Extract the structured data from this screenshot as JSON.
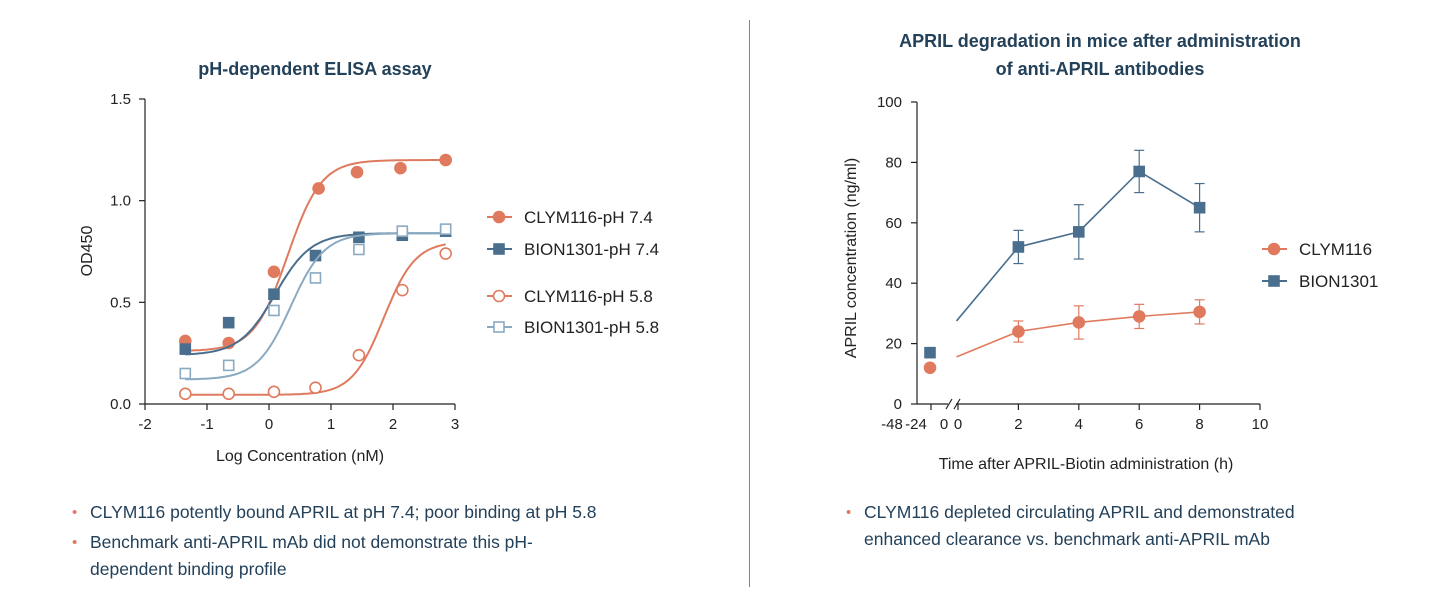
{
  "colors": {
    "orange": "#e07a5f",
    "blue": "#4a6f8e",
    "lightblue": "#8aaac2",
    "title": "#24415a",
    "divider": "#6a8aa5"
  },
  "chart_data": [
    {
      "type": "scatter",
      "title": "pH-dependent ELISA assay",
      "xlabel": "Log Concentration (nM)",
      "ylabel": "OD450",
      "xlim": [
        -2,
        3
      ],
      "ylim": [
        0,
        1.5
      ],
      "xticks": [
        "-2",
        "-1",
        "0",
        "1",
        "2",
        "3"
      ],
      "yticks": [
        "0.0",
        "0.5",
        "1.0",
        "1.5"
      ],
      "series": [
        {
          "name": "CLYM116-pH 7.4",
          "marker": "circle",
          "filled": true,
          "color": "#e07a5f",
          "x": [
            -1.35,
            -0.65,
            0.08,
            0.8,
            1.42,
            2.12,
            2.85
          ],
          "y": [
            0.31,
            0.3,
            0.65,
            1.06,
            1.14,
            1.16,
            1.2
          ],
          "curve": {
            "bottom": 0.26,
            "top": 1.2,
            "ec50": 0.3,
            "hill": 1.6
          }
        },
        {
          "name": "BION1301-pH 7.4",
          "marker": "square",
          "filled": true,
          "color": "#4a6f8e",
          "x": [
            -1.35,
            -0.65,
            0.08,
            0.75,
            1.45,
            2.15,
            2.85
          ],
          "y": [
            0.27,
            0.4,
            0.54,
            0.73,
            0.82,
            0.83,
            0.85
          ],
          "curve": {
            "bottom": 0.24,
            "top": 0.84,
            "ec50": 0.1,
            "hill": 1.5
          }
        },
        {
          "name": "CLYM116-pH 5.8",
          "marker": "circle",
          "filled": false,
          "color": "#e07a5f",
          "x": [
            -1.35,
            -0.65,
            0.08,
            0.75,
            1.45,
            2.15,
            2.85
          ],
          "y": [
            0.05,
            0.05,
            0.06,
            0.08,
            0.24,
            0.56,
            0.74
          ],
          "curve": {
            "bottom": 0.045,
            "top": 0.8,
            "ec50": 1.85,
            "hill": 1.7
          }
        },
        {
          "name": "BION1301-pH 5.8",
          "marker": "square",
          "filled": false,
          "color": "#8aaac2",
          "x": [
            -1.35,
            -0.65,
            0.08,
            0.75,
            1.45,
            2.15,
            2.85
          ],
          "y": [
            0.15,
            0.19,
            0.46,
            0.62,
            0.76,
            0.85,
            0.86
          ],
          "curve": {
            "bottom": 0.12,
            "top": 0.84,
            "ec50": 0.35,
            "hill": 1.6
          }
        }
      ],
      "legend_groups": [
        [
          0,
          1
        ],
        [
          2,
          3
        ]
      ],
      "legend": "right"
    },
    {
      "type": "line",
      "title": "APRIL degradation in mice after administration\nof anti-APRIL antibodies",
      "xlabel": "Time after APRIL-Biotin administration (h)",
      "ylabel": "APRIL concentration (ng/ml)",
      "ylim": [
        0,
        100
      ],
      "xlim": [
        0,
        10
      ],
      "xticks_pre": [
        "-48",
        "-24",
        "0"
      ],
      "xticks": [
        "0",
        "2",
        "4",
        "6",
        "8",
        "10"
      ],
      "yticks": [
        "0",
        "20",
        "40",
        "60",
        "80",
        "100"
      ],
      "series": [
        {
          "name": "CLYM116",
          "marker": "circle",
          "color": "#e07a5f",
          "baseline": 12,
          "x": [
            2,
            4,
            6,
            8
          ],
          "y": [
            24,
            27,
            29,
            30.5
          ],
          "err": [
            3.5,
            5.5,
            4,
            4
          ]
        },
        {
          "name": "BION1301",
          "marker": "square",
          "color": "#4a6f8e",
          "baseline": 17,
          "x": [
            2,
            4,
            6,
            8
          ],
          "y": [
            52,
            57,
            77,
            65
          ],
          "err": [
            5.5,
            9,
            7,
            8
          ]
        }
      ],
      "legend": "right"
    }
  ],
  "bullets_left": [
    "CLYM116 potently bound APRIL at pH 7.4; poor binding at pH 5.8",
    "Benchmark anti-APRIL mAb did not demonstrate this pH-dependent binding profile"
  ],
  "bullets_right": [
    "CLYM116 depleted circulating APRIL and demonstrated enhanced clearance vs. benchmark anti-APRIL mAb"
  ]
}
